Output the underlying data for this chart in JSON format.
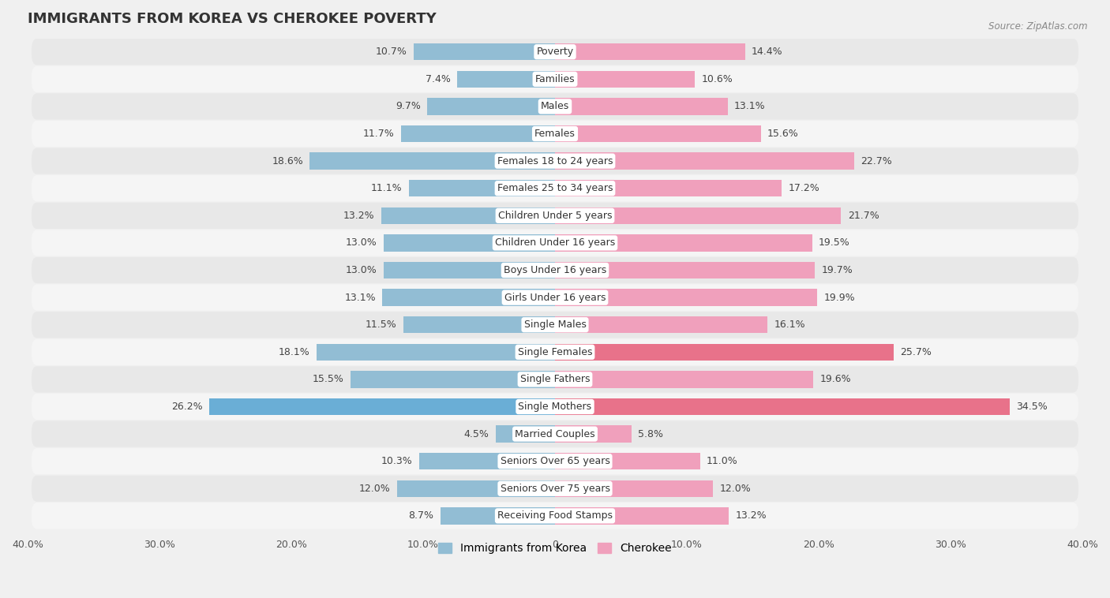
{
  "title": "IMMIGRANTS FROM KOREA VS CHEROKEE POVERTY",
  "source": "Source: ZipAtlas.com",
  "categories": [
    "Poverty",
    "Families",
    "Males",
    "Females",
    "Females 18 to 24 years",
    "Females 25 to 34 years",
    "Children Under 5 years",
    "Children Under 16 years",
    "Boys Under 16 years",
    "Girls Under 16 years",
    "Single Males",
    "Single Females",
    "Single Fathers",
    "Single Mothers",
    "Married Couples",
    "Seniors Over 65 years",
    "Seniors Over 75 years",
    "Receiving Food Stamps"
  ],
  "korea_values": [
    10.7,
    7.4,
    9.7,
    11.7,
    18.6,
    11.1,
    13.2,
    13.0,
    13.0,
    13.1,
    11.5,
    18.1,
    15.5,
    26.2,
    4.5,
    10.3,
    12.0,
    8.7
  ],
  "cherokee_values": [
    14.4,
    10.6,
    13.1,
    15.6,
    22.7,
    17.2,
    21.7,
    19.5,
    19.7,
    19.9,
    16.1,
    25.7,
    19.6,
    34.5,
    5.8,
    11.0,
    12.0,
    13.2
  ],
  "korea_color": "#92bdd4",
  "cherokee_color": "#f0a0bc",
  "korea_highlight_color": "#6aaed6",
  "cherokee_highlight_color": "#e8728a",
  "row_colors": [
    "#e8e8e8",
    "#f5f5f5"
  ],
  "background_color": "#f0f0f0",
  "xlim": 40.0,
  "bar_height": 0.62,
  "label_fontsize": 9,
  "category_fontsize": 9,
  "title_fontsize": 13,
  "legend_fontsize": 10,
  "highlight_rows": [
    11,
    13
  ]
}
